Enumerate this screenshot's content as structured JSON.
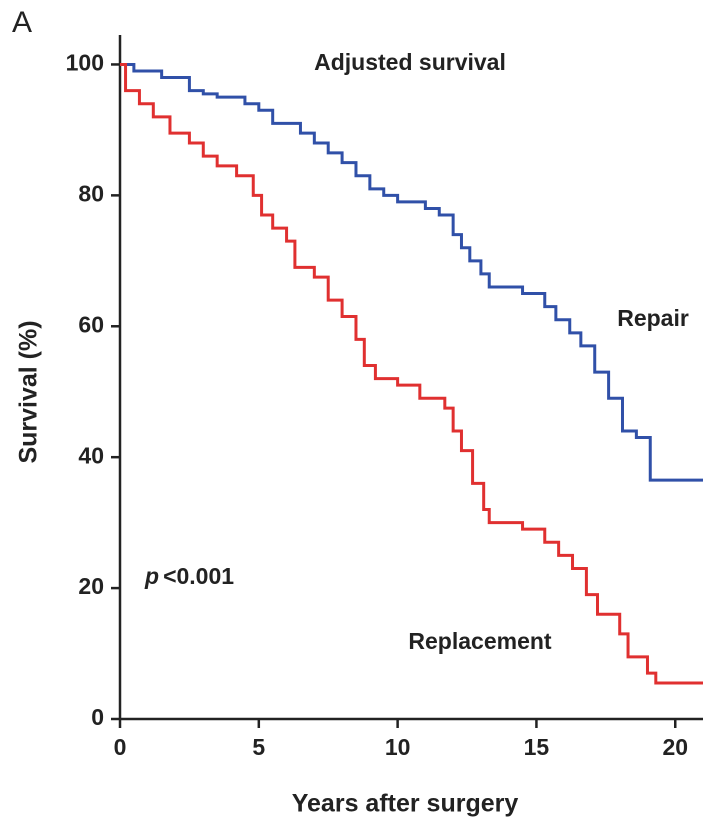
{
  "chart_data": {
    "type": "step",
    "panel": "A",
    "title": "Adjusted survival",
    "xlabel": "Years after surgery",
    "ylabel": "Survival (%)",
    "xlim": [
      0,
      21
    ],
    "ylim": [
      0,
      104.5
    ],
    "xticks": [
      0,
      5,
      10,
      15,
      20
    ],
    "yticks": [
      0,
      20,
      40,
      60,
      80,
      100
    ],
    "p_value": {
      "symbol": "p",
      "text": "<0.001"
    },
    "series": [
      {
        "name": "Repair",
        "color": "#3050a8",
        "x": [
          0,
          0.5,
          1.5,
          2.5,
          3,
          3.5,
          4.5,
          5,
          5.5,
          6.5,
          7,
          7.5,
          8,
          8.5,
          9,
          9.5,
          10,
          11,
          11.5,
          12,
          12.3,
          12.6,
          13,
          13.3,
          14,
          14.5,
          15.3,
          15.7,
          16.2,
          16.6,
          17.1,
          17.6,
          18.1,
          18.6,
          19.1,
          21
        ],
        "values": [
          100,
          99,
          98,
          96,
          95.5,
          95,
          94,
          93,
          91,
          89.5,
          88,
          86.5,
          85,
          83,
          81,
          80,
          79,
          78,
          77,
          74,
          72,
          70,
          68,
          66,
          66,
          65,
          63,
          61,
          59,
          57,
          53,
          49,
          44,
          43,
          36.5,
          36.5
        ]
      },
      {
        "name": "Replacement",
        "color": "#e03030",
        "x": [
          0,
          0.2,
          0.7,
          1.2,
          1.8,
          2.5,
          3,
          3.5,
          4.2,
          4.8,
          5.1,
          5.5,
          6,
          6.3,
          7,
          7.5,
          8,
          8.5,
          8.8,
          9.2,
          10,
          10.8,
          11.7,
          12,
          12.3,
          12.7,
          13.1,
          13.3,
          14.5,
          15.3,
          15.8,
          16.3,
          16.8,
          17.2,
          18,
          18.3,
          19,
          19.3,
          21
        ],
        "values": [
          100,
          96,
          94,
          92,
          89.5,
          88,
          86,
          84.5,
          83,
          80,
          77,
          75,
          73,
          69,
          67.5,
          64,
          61.5,
          58,
          54,
          52,
          51,
          49,
          47.5,
          44,
          41,
          36,
          32,
          30,
          29,
          27,
          25,
          23,
          19,
          16,
          13,
          9.5,
          7,
          5.5,
          5.5
        ]
      }
    ]
  }
}
